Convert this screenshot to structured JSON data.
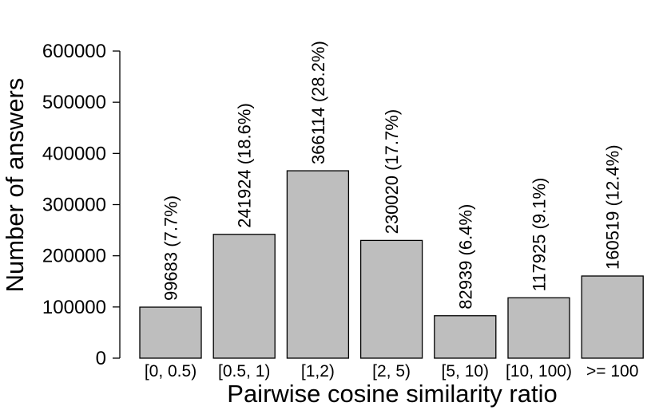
{
  "chart_data": {
    "type": "bar",
    "categories": [
      "[0, 0.5)",
      "[0.5, 1)",
      "[1,2)",
      "[2, 5)",
      "[5, 10)",
      "[10, 100)",
      ">= 100"
    ],
    "values": [
      99683,
      241924,
      366114,
      230020,
      82939,
      117925,
      160519
    ],
    "data_labels": [
      "99683 (7.7%)",
      "241924 (18.6%)",
      "366114 (28.2%)",
      "230020 (17.7%)",
      "82939 (6.4%)",
      "117925 (9.1%)",
      "160519 (12.4%)"
    ],
    "title": "",
    "xlabel": "Pairwise cosine similarity ratio",
    "ylabel": "Number of answers",
    "ylim": [
      0,
      600000
    ],
    "yticks": [
      0,
      100000,
      200000,
      300000,
      400000,
      500000,
      600000
    ],
    "ytick_labels": [
      "0",
      "100000",
      "200000",
      "300000",
      "400000",
      "500000",
      "600000"
    ],
    "colors": {
      "bar_fill": "#bebebe",
      "bar_stroke": "#000000"
    },
    "grid": false,
    "legend": "none"
  }
}
